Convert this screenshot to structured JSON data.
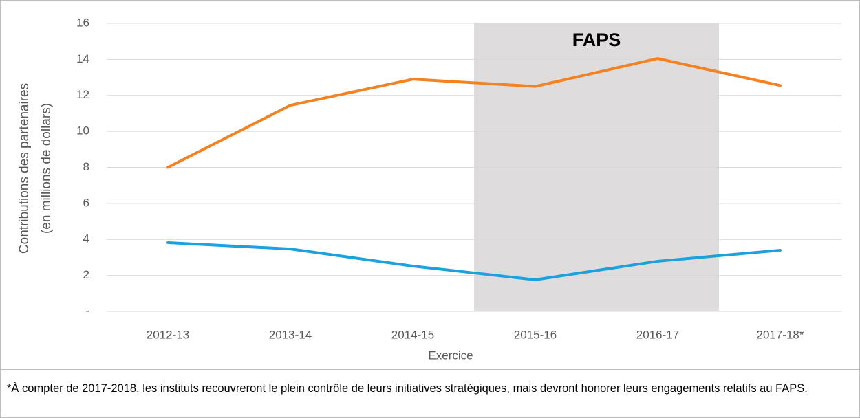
{
  "chart_data": {
    "type": "line",
    "y_label": [
      "Contributions des partenaires",
      "(en millions de dollars)"
    ],
    "x_label": "Exercice",
    "categories": [
      "2012-13",
      "2013-14",
      "2014-15",
      "2015-16",
      "2016-17",
      "2017-18*"
    ],
    "series": [
      {
        "color": "#f58220",
        "values": [
          8.0,
          11.45,
          12.9,
          12.5,
          14.05,
          12.55
        ]
      },
      {
        "color": "#1ba1dc",
        "values": [
          3.82,
          3.47,
          2.52,
          1.76,
          2.79,
          3.4
        ]
      }
    ],
    "ylim": [
      0,
      16
    ],
    "yticks": [
      {
        "value": 0,
        "label": "-"
      },
      2,
      4,
      6,
      8,
      10,
      12,
      14,
      16
    ],
    "grid": true,
    "shaded_region": {
      "text": "FAPS",
      "from": "2015-16",
      "to": "2016-17",
      "color": "#dedcdc"
    },
    "note": "*À compter de 2017-2018, les instituts recouvreront le plein contrôle de leurs initiatives stratégiques, mais devront honorer leurs engagements relatifs au FAPS."
  }
}
